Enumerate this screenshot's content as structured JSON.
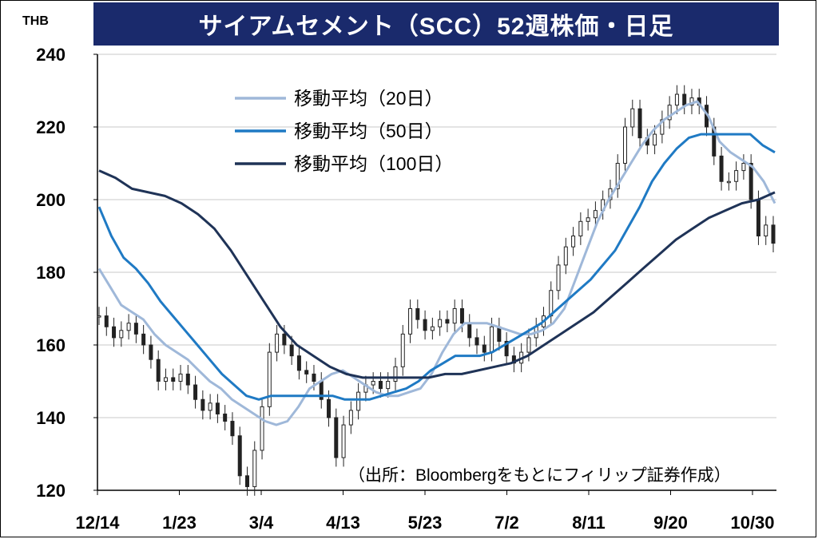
{
  "chart_data": {
    "type": "candlestick-with-lines",
    "title": "サイアムセメント（SCC）52週株価・日足",
    "unit_label": "THB",
    "ylim": [
      120,
      240
    ],
    "yticks": [
      "240",
      "220",
      "200",
      "180",
      "160",
      "140",
      "120"
    ],
    "ytick_values": [
      240,
      220,
      200,
      180,
      160,
      140,
      120
    ],
    "xticks": [
      "12/14",
      "1/23",
      "3/4",
      "4/13",
      "5/23",
      "7/2",
      "8/11",
      "9/20",
      "10/30"
    ],
    "grid": true,
    "legend_position": "top-left",
    "source": "（出所：Bloombergをもとにフィリップ証券作成）",
    "series": [
      {
        "name": "移動平均（20日）",
        "color": "#9fb8d9",
        "values": [
          181,
          176,
          171,
          169,
          167,
          163,
          160,
          158,
          156,
          153,
          150,
          148,
          145,
          143,
          141,
          139,
          138,
          139,
          143,
          148,
          150,
          152,
          153,
          151,
          149,
          147,
          146,
          146,
          147,
          148,
          152,
          158,
          163,
          166,
          166,
          166,
          165,
          164,
          163,
          163,
          164,
          166,
          170,
          178,
          186,
          194,
          200,
          205,
          210,
          215,
          219,
          222,
          224,
          226,
          227,
          223,
          216,
          213,
          211,
          209,
          205,
          199
        ]
      },
      {
        "name": "移動平均（50日）",
        "color": "#1f7ac4",
        "values": [
          198,
          190,
          184,
          181,
          177,
          172,
          168,
          164,
          160,
          156,
          152,
          149,
          146,
          145,
          146,
          146,
          146,
          146,
          146,
          146,
          145,
          145,
          145,
          146,
          147,
          148,
          150,
          153,
          155,
          157,
          157,
          157,
          158,
          160,
          162,
          164,
          166,
          169,
          172,
          175,
          178,
          182,
          186,
          192,
          198,
          205,
          210,
          214,
          217,
          218,
          218,
          218,
          218,
          218,
          215,
          213
        ]
      },
      {
        "name": "移動平均（100日）",
        "color": "#1f3357",
        "values": [
          208,
          206,
          203,
          202,
          201,
          199,
          196,
          192,
          186,
          179,
          172,
          165,
          160,
          157,
          154,
          152,
          151,
          151,
          151,
          151,
          151,
          152,
          152,
          153,
          154,
          155,
          157,
          160,
          163,
          166,
          169,
          173,
          177,
          181,
          185,
          189,
          192,
          195,
          197,
          199,
          200,
          202
        ]
      }
    ],
    "candles_close": [
      168,
      165,
      162,
      164,
      166,
      163,
      160,
      156,
      150,
      151,
      150,
      152,
      149,
      145,
      142,
      144,
      141,
      139,
      135,
      124,
      121,
      131,
      143,
      158,
      163,
      160,
      157,
      153,
      152,
      150,
      145,
      140,
      129,
      138,
      142,
      147,
      149,
      150,
      148,
      150,
      154,
      163,
      170,
      167,
      164,
      165,
      167,
      166,
      170,
      166,
      162,
      160,
      158,
      165,
      161,
      157,
      155,
      158,
      162,
      165,
      168,
      175,
      182,
      187,
      190,
      194,
      195,
      197,
      200,
      203,
      210,
      220,
      225,
      217,
      215,
      218,
      222,
      226,
      229,
      226,
      228,
      226,
      220,
      212,
      205,
      205,
      208,
      210,
      200,
      190,
      193,
      188
    ]
  }
}
